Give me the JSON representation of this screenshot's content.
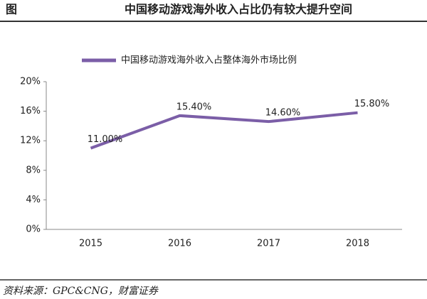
{
  "figure_label": "图",
  "chart_data": {
    "type": "line",
    "title": "中国移动游戏海外收入占比仍有较大提升空间",
    "categories": [
      "2015",
      "2016",
      "2017",
      "2018"
    ],
    "series": [
      {
        "name": "中国移动游戏海外收入占整体海外市场比例",
        "color": "#7b5ea7",
        "values": [
          11.0,
          15.4,
          14.6,
          15.8
        ],
        "value_labels": [
          "11.00%",
          "15.40%",
          "14.60%",
          "15.80%"
        ]
      }
    ],
    "ylim": [
      0,
      20
    ],
    "yticks": [
      {
        "value": 0,
        "label": "0%"
      },
      {
        "value": 4,
        "label": "4%"
      },
      {
        "value": 8,
        "label": "8%"
      },
      {
        "value": 12,
        "label": "12%"
      },
      {
        "value": 16,
        "label": "16%"
      },
      {
        "value": 20,
        "label": "20%"
      }
    ],
    "legend": "top"
  },
  "source": "资料来源：GPC&CNG，财富证券"
}
